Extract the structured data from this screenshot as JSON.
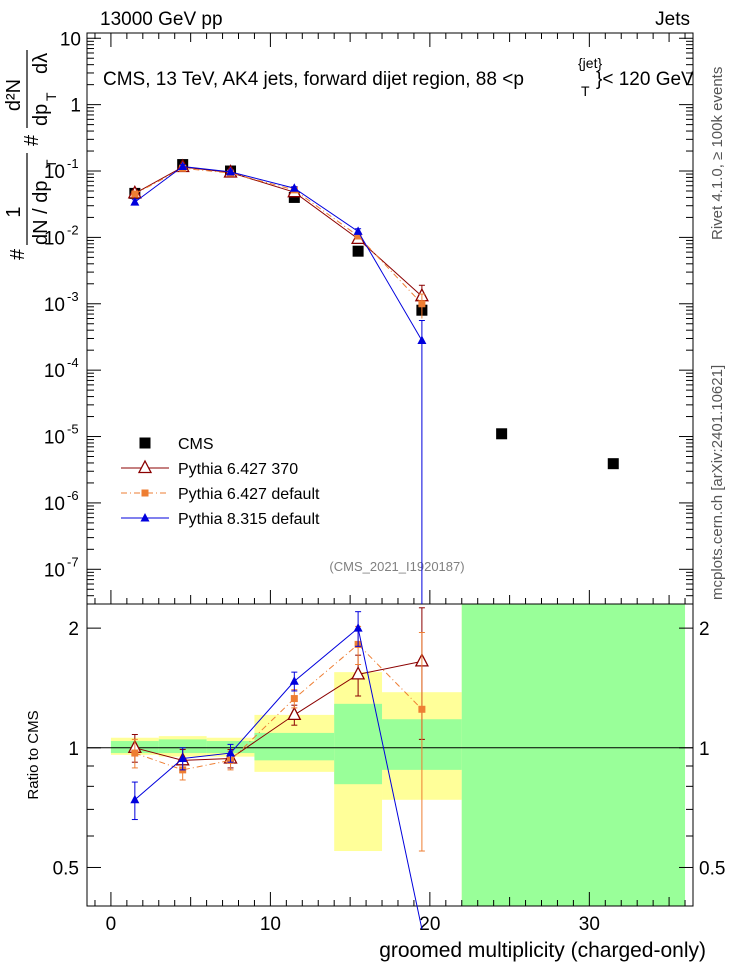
{
  "header": {
    "left": "13000 GeV pp",
    "right": "Jets"
  },
  "title_parts": {
    "main": "CMS, 13 TeV, AK4 jets, forward dijet region, 88 <p",
    "sup": "{jet}",
    "sub": "T",
    "tail": "}< 120 GeV"
  },
  "ylabel_parts": {
    "hash1": "#",
    "frac1_num": "1",
    "frac1_den": "dN / dp",
    "frac1_sub": "T",
    "hash2": "#",
    "frac2_num": "d²N",
    "frac2_den": "dp",
    "frac2_sub": "T",
    "frac2_end": "dλ"
  },
  "side_labels": {
    "rivet": "Rivet 4.1.0, ≥ 100k events",
    "mcplots": "mcplots.cern.ch [arXiv:2401.10621]"
  },
  "watermark": "(CMS_2021_I1920187)",
  "colors": {
    "cms": "#000000",
    "py6_370": "#8b0000",
    "py6_default": "#ee7e33",
    "py8": "#0000dd",
    "band_yellow": "#ffff99",
    "band_green": "#99ff99"
  },
  "legend": [
    {
      "name": "CMS",
      "key": "cms"
    },
    {
      "name": "Pythia 6.427 370",
      "key": "py6_370"
    },
    {
      "name": "Pythia 6.427 default",
      "key": "py6_default"
    },
    {
      "name": "Pythia 8.315 default",
      "key": "py8"
    }
  ],
  "chart_data": {
    "type": "scatter",
    "x": [
      1.5,
      4.5,
      7.5,
      11.5,
      15.5,
      19.5,
      24.5,
      31.5
    ],
    "xbins": [
      [
        0,
        3
      ],
      [
        3,
        6
      ],
      [
        6,
        9
      ],
      [
        9,
        14
      ],
      [
        14,
        17
      ],
      [
        17,
        22
      ],
      [
        22,
        27
      ],
      [
        27,
        36
      ]
    ],
    "xlim": [
      -1.5,
      36.5
    ],
    "xticks": [
      0,
      10,
      20,
      30
    ],
    "xlabel": "groomed multiplicity (charged-only)",
    "main": {
      "yscale": "log",
      "ylim": [
        3e-08,
        12
      ],
      "ytick_labels": [
        {
          "v": 10,
          "label": "10"
        },
        {
          "v": 1,
          "label": "1"
        },
        {
          "v": 0.1,
          "label": "10-1",
          "mant": "10",
          "exp": "-1"
        },
        {
          "v": 0.01,
          "label": "10-2",
          "mant": "10",
          "exp": "-2"
        },
        {
          "v": 0.001,
          "label": "10-3",
          "mant": "10",
          "exp": "-3"
        },
        {
          "v": 0.0001,
          "label": "10-4",
          "mant": "10",
          "exp": "-4"
        },
        {
          "v": 1e-05,
          "label": "10-5",
          "mant": "10",
          "exp": "-5"
        },
        {
          "v": 1e-06,
          "label": "10-6",
          "mant": "10",
          "exp": "-6"
        },
        {
          "v": 1e-07,
          "label": "10-7",
          "mant": "10",
          "exp": "-7"
        }
      ],
      "series": [
        {
          "name": "CMS",
          "key": "cms",
          "marker": "square",
          "values": [
            0.046,
            0.125,
            0.1,
            0.04,
            0.0062,
            0.0008,
            1.1e-05,
            3.9e-06
          ],
          "line": false
        },
        {
          "name": "Pythia 6.427 370",
          "key": "py6_370",
          "marker": "triangle-open",
          "values": [
            0.046,
            0.115,
            0.095,
            0.048,
            0.0095,
            0.0013
          ],
          "errors": [
            0.004,
            0.008,
            0.006,
            0.003,
            0.001,
            0.0006
          ],
          "line": true
        },
        {
          "name": "Pythia 6.427 default",
          "key": "py6_default",
          "marker": "square-small",
          "values": [
            0.045,
            0.11,
            0.093,
            0.052,
            0.0105,
            0.001
          ],
          "errors": [
            0.004,
            0.008,
            0.006,
            0.003,
            0.001,
            0.0004
          ],
          "line": true,
          "dashed": true
        },
        {
          "name": "Pythia 8.315 default",
          "key": "py8",
          "marker": "triangle",
          "values": [
            0.034,
            0.117,
            0.097,
            0.055,
            0.0123,
            0.00028
          ],
          "errors": [
            0.003,
            0.008,
            0.006,
            0.003,
            0.0012,
            0.00028
          ],
          "line": true
        }
      ]
    },
    "ratio": {
      "ylabel": "Ratio to CMS",
      "yscale": "log",
      "ylim": [
        0.4,
        2.3
      ],
      "ytick_labels": [
        {
          "v": 0.5,
          "label": "0.5"
        },
        {
          "v": 1,
          "label": "1"
        },
        {
          "v": 2,
          "label": "2"
        }
      ],
      "bands": {
        "yellow": [
          [
            0.96,
            1.06
          ],
          [
            0.95,
            1.07
          ],
          [
            0.95,
            1.06
          ],
          [
            0.87,
            1.21
          ],
          [
            0.55,
            1.55
          ],
          [
            0.74,
            1.38
          ],
          [
            0.35,
            2.3
          ],
          [
            0.35,
            2.3
          ]
        ],
        "green": [
          [
            0.97,
            1.04
          ],
          [
            0.97,
            1.05
          ],
          [
            0.97,
            1.04
          ],
          [
            0.93,
            1.09
          ],
          [
            0.81,
            1.29
          ],
          [
            0.88,
            1.18
          ],
          [
            0.35,
            2.3
          ],
          [
            0.35,
            2.3
          ]
        ]
      },
      "series": [
        {
          "key": "py6_370",
          "marker": "triangle-open",
          "values": [
            1.0,
            0.93,
            0.94,
            1.21,
            1.53,
            1.65
          ],
          "errors": [
            0.08,
            0.06,
            0.05,
            0.07,
            0.18,
            0.6
          ],
          "line": true
        },
        {
          "key": "py6_default",
          "marker": "square-small",
          "values": [
            0.97,
            0.88,
            0.93,
            1.33,
            1.82,
            1.25
          ],
          "errors": [
            0.08,
            0.05,
            0.05,
            0.07,
            0.2,
            0.7
          ],
          "line": true,
          "dashed": true
        },
        {
          "key": "py8",
          "marker": "triangle",
          "values": [
            0.74,
            0.94,
            0.97,
            1.47,
            2.0,
            0.35
          ],
          "errors": [
            0.08,
            0.06,
            0.05,
            0.08,
            0.2,
            0.0
          ],
          "line": true
        }
      ]
    }
  }
}
